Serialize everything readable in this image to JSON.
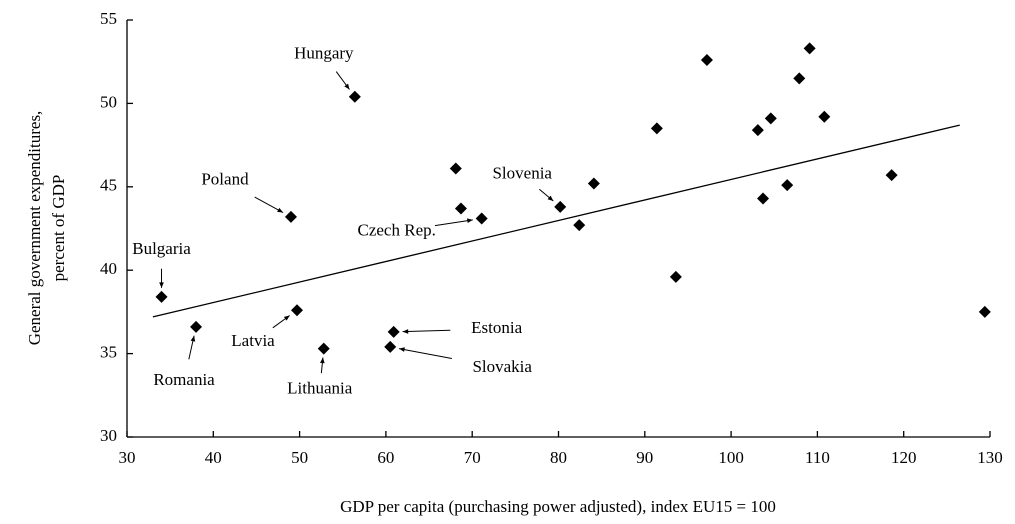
{
  "chart_data": {
    "type": "scatter",
    "x_label": "GDP per capita (purchasing power adjusted), index EU15 = 100",
    "y_label": [
      "General government expenditures,",
      "percent of GDP"
    ],
    "xlim": [
      30,
      130
    ],
    "xticks": [
      30,
      40,
      50,
      60,
      70,
      80,
      90,
      100,
      110,
      120,
      130
    ],
    "ylim": [
      30,
      55
    ],
    "yticks": [
      30,
      35,
      40,
      45,
      50,
      55
    ],
    "color": "#000000",
    "x": [
      34.0,
      38.0,
      49.0,
      49.7,
      52.8,
      56.4,
      60.9,
      60.5,
      68.1,
      68.7,
      71.1,
      80.2,
      82.4,
      84.1,
      91.4,
      93.6,
      97.2,
      103.1,
      103.7,
      104.6,
      106.5,
      107.9,
      109.1,
      110.8,
      118.6,
      129.4
    ],
    "values": [
      38.4,
      36.6,
      43.2,
      37.6,
      35.3,
      50.4,
      36.3,
      35.4,
      46.1,
      43.7,
      43.1,
      43.8,
      42.7,
      45.2,
      48.5,
      39.6,
      52.6,
      48.4,
      44.3,
      49.1,
      45.1,
      51.5,
      53.3,
      49.2,
      45.7,
      37.5
    ],
    "point_labels": [
      "Bulgaria",
      "Romania",
      "Poland",
      "Latvia",
      "Lithuania",
      "Hungary",
      "Estonia",
      "Slovakia",
      null,
      null,
      "Czech Rep.",
      "Slovenia",
      null,
      null,
      null,
      null,
      null,
      null,
      null,
      null,
      null,
      null,
      null,
      null,
      null,
      null
    ],
    "trend_line": {
      "x": [
        33,
        126.5
      ],
      "y": [
        37.2,
        48.7
      ]
    }
  }
}
